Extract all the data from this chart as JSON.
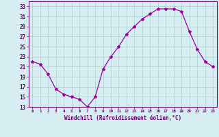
{
  "x": [
    0,
    1,
    2,
    3,
    4,
    5,
    6,
    7,
    8,
    9,
    10,
    11,
    12,
    13,
    14,
    15,
    16,
    17,
    18,
    19,
    20,
    21,
    22,
    23
  ],
  "y": [
    22,
    21.5,
    19.5,
    16.5,
    15.5,
    15,
    14.5,
    13,
    15,
    20.5,
    23,
    25,
    27.5,
    29,
    30.5,
    31.5,
    32.5,
    32.5,
    32.5,
    32,
    28,
    24.5,
    22,
    21
  ],
  "line_color": "#990099",
  "marker": "*",
  "marker_size": 3,
  "bg_color": "#d6eef2",
  "grid_color": "#aacccc",
  "xlabel": "Windchill (Refroidissement éolien,°C)",
  "xlabel_color": "#660066",
  "tick_color": "#660066",
  "axis_color": "#660066",
  "ylim": [
    13,
    34
  ],
  "xlim": [
    -0.5,
    23.5
  ],
  "yticks": [
    13,
    15,
    17,
    19,
    21,
    23,
    25,
    27,
    29,
    31,
    33
  ],
  "xticks": [
    0,
    1,
    2,
    3,
    4,
    5,
    6,
    7,
    8,
    9,
    10,
    11,
    12,
    13,
    14,
    15,
    16,
    17,
    18,
    19,
    20,
    21,
    22,
    23
  ]
}
